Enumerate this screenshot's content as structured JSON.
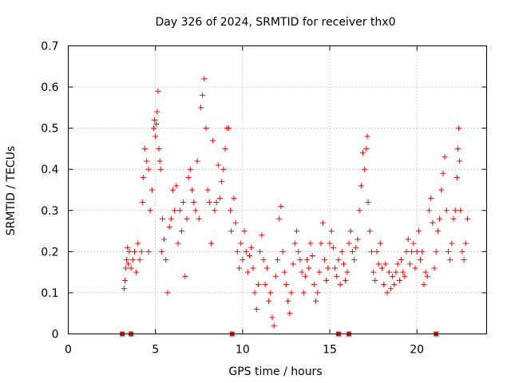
{
  "chart_data": {
    "type": "scatter",
    "title": "Day 326 of 2024, SRMTID for receiver thx0",
    "xlabel": "GPS time / hours",
    "ylabel": "SRMTID / TECUs",
    "xlim": [
      0,
      24
    ],
    "ylim": [
      0,
      0.7
    ],
    "xticks": [
      0,
      5,
      10,
      15,
      20
    ],
    "xtick_labels": [
      "0",
      "5",
      "10",
      "15",
      "20"
    ],
    "yticks": [
      0,
      0.1,
      0.2,
      0.3,
      0.4,
      0.5,
      0.6,
      0.7
    ],
    "ytick_labels": [
      "0",
      "0.1",
      "0.2",
      "0.3",
      "0.4",
      "0.5",
      "0.6",
      "0.7"
    ],
    "grid": true,
    "marker": "plus",
    "color": "#ff0000",
    "series": [
      {
        "name": "SRMTID",
        "points": [
          [
            3.2,
            0.11
          ],
          [
            3.25,
            0.13
          ],
          [
            3.3,
            0.16
          ],
          [
            3.35,
            0.18
          ],
          [
            3.4,
            0.21
          ],
          [
            3.45,
            0.17
          ],
          [
            3.5,
            0.2
          ],
          [
            3.6,
            0.16
          ],
          [
            3.7,
            0.18
          ],
          [
            3.8,
            0.2
          ],
          [
            3.9,
            0.15
          ],
          [
            4.0,
            0.22
          ],
          [
            4.1,
            0.18
          ],
          [
            4.2,
            0.2
          ],
          [
            4.25,
            0.32
          ],
          [
            4.3,
            0.38
          ],
          [
            4.4,
            0.45
          ],
          [
            4.5,
            0.42
          ],
          [
            4.6,
            0.4
          ],
          [
            4.6,
            0.2
          ],
          [
            4.7,
            0.3
          ],
          [
            4.8,
            0.35
          ],
          [
            4.9,
            0.5
          ],
          [
            4.95,
            0.52
          ],
          [
            5.0,
            0.48
          ],
          [
            5.05,
            0.51
          ],
          [
            5.1,
            0.54
          ],
          [
            5.15,
            0.59
          ],
          [
            5.2,
            0.45
          ],
          [
            5.25,
            0.42
          ],
          [
            5.3,
            0.4
          ],
          [
            5.35,
            0.2
          ],
          [
            5.4,
            0.28
          ],
          [
            5.5,
            0.23
          ],
          [
            5.6,
            0.18
          ],
          [
            5.7,
            0.1
          ],
          [
            5.8,
            0.26
          ],
          [
            5.9,
            0.28
          ],
          [
            6.0,
            0.35
          ],
          [
            6.1,
            0.3
          ],
          [
            6.2,
            0.36
          ],
          [
            6.3,
            0.22
          ],
          [
            6.4,
            0.3
          ],
          [
            6.5,
            0.25
          ],
          [
            6.6,
            0.32
          ],
          [
            6.7,
            0.14
          ],
          [
            6.8,
            0.28
          ],
          [
            6.9,
            0.38
          ],
          [
            7.0,
            0.4
          ],
          [
            7.1,
            0.35
          ],
          [
            7.2,
            0.32
          ],
          [
            7.3,
            0.3
          ],
          [
            7.4,
            0.42
          ],
          [
            7.5,
            0.28
          ],
          [
            7.6,
            0.55
          ],
          [
            7.7,
            0.58
          ],
          [
            7.8,
            0.62
          ],
          [
            7.9,
            0.5
          ],
          [
            8.0,
            0.35
          ],
          [
            8.1,
            0.32
          ],
          [
            8.2,
            0.22
          ],
          [
            8.3,
            0.47
          ],
          [
            8.4,
            0.3
          ],
          [
            8.5,
            0.32
          ],
          [
            8.6,
            0.41
          ],
          [
            8.7,
            0.33
          ],
          [
            8.8,
            0.37
          ],
          [
            8.9,
            0.4
          ],
          [
            9.0,
            0.45
          ],
          [
            9.1,
            0.5
          ],
          [
            9.2,
            0.5
          ],
          [
            9.3,
            0.3
          ],
          [
            9.35,
            0.25
          ],
          [
            9.5,
            0.33
          ],
          [
            9.6,
            0.27
          ],
          [
            9.7,
            0.2
          ],
          [
            9.8,
            0.16
          ],
          [
            9.9,
            0.22
          ],
          [
            10.0,
            0.18
          ],
          [
            10.1,
            0.25
          ],
          [
            10.2,
            0.2
          ],
          [
            10.3,
            0.15
          ],
          [
            10.4,
            0.19
          ],
          [
            10.5,
            0.21
          ],
          [
            10.6,
            0.16
          ],
          [
            10.7,
            0.1
          ],
          [
            10.8,
            0.06
          ],
          [
            10.9,
            0.12
          ],
          [
            11.0,
            0.2
          ],
          [
            11.1,
            0.24
          ],
          [
            11.2,
            0.18
          ],
          [
            11.3,
            0.12
          ],
          [
            11.4,
            0.16
          ],
          [
            11.5,
            0.08
          ],
          [
            11.6,
            0.1
          ],
          [
            11.7,
            0.04
          ],
          [
            11.8,
            0.02
          ],
          [
            11.9,
            0.14
          ],
          [
            12.0,
            0.18
          ],
          [
            12.1,
            0.28
          ],
          [
            12.2,
            0.31
          ],
          [
            12.3,
            0.2
          ],
          [
            12.4,
            0.15
          ],
          [
            12.5,
            0.12
          ],
          [
            12.6,
            0.08
          ],
          [
            12.7,
            0.05
          ],
          [
            12.8,
            0.1
          ],
          [
            12.9,
            0.17
          ],
          [
            13.0,
            0.22
          ],
          [
            13.1,
            0.25
          ],
          [
            13.2,
            0.2
          ],
          [
            13.3,
            0.18
          ],
          [
            13.4,
            0.15
          ],
          [
            13.5,
            0.1
          ],
          [
            13.6,
            0.14
          ],
          [
            13.7,
            0.18
          ],
          [
            13.8,
            0.16
          ],
          [
            13.9,
            0.22
          ],
          [
            14.0,
            0.19
          ],
          [
            14.1,
            0.12
          ],
          [
            14.2,
            0.08
          ],
          [
            14.3,
            0.1
          ],
          [
            14.4,
            0.15
          ],
          [
            14.5,
            0.22
          ],
          [
            14.6,
            0.27
          ],
          [
            14.7,
            0.18
          ],
          [
            14.8,
            0.13
          ],
          [
            14.9,
            0.16
          ],
          [
            15.0,
            0.22
          ],
          [
            15.1,
            0.25
          ],
          [
            15.2,
            0.21
          ],
          [
            15.3,
            0.16
          ],
          [
            15.4,
            0.14
          ],
          [
            15.5,
            0.18
          ],
          [
            15.6,
            0.12
          ],
          [
            15.7,
            0.2
          ],
          [
            15.8,
            0.17
          ],
          [
            15.9,
            0.13
          ],
          [
            16.0,
            0.15
          ],
          [
            16.1,
            0.22
          ],
          [
            16.2,
            0.25
          ],
          [
            16.3,
            0.2
          ],
          [
            16.4,
            0.18
          ],
          [
            16.5,
            0.21
          ],
          [
            16.6,
            0.23
          ],
          [
            16.7,
            0.3
          ],
          [
            16.8,
            0.36
          ],
          [
            16.9,
            0.44
          ],
          [
            17.0,
            0.4
          ],
          [
            17.1,
            0.45
          ],
          [
            17.15,
            0.48
          ],
          [
            17.2,
            0.32
          ],
          [
            17.3,
            0.25
          ],
          [
            17.4,
            0.2
          ],
          [
            17.5,
            0.15
          ],
          [
            17.6,
            0.13
          ],
          [
            17.7,
            0.2
          ],
          [
            17.8,
            0.17
          ],
          [
            17.9,
            0.22
          ],
          [
            18.0,
            0.16
          ],
          [
            18.1,
            0.12
          ],
          [
            18.2,
            0.17
          ],
          [
            18.3,
            0.1
          ],
          [
            18.4,
            0.15
          ],
          [
            18.5,
            0.11
          ],
          [
            18.6,
            0.14
          ],
          [
            18.7,
            0.12
          ],
          [
            18.8,
            0.15
          ],
          [
            18.9,
            0.17
          ],
          [
            19.0,
            0.13
          ],
          [
            19.1,
            0.18
          ],
          [
            19.2,
            0.15
          ],
          [
            19.3,
            0.14
          ],
          [
            19.4,
            0.2
          ],
          [
            19.5,
            0.23
          ],
          [
            19.6,
            0.17
          ],
          [
            19.7,
            0.2
          ],
          [
            19.8,
            0.22
          ],
          [
            19.9,
            0.16
          ],
          [
            20.0,
            0.2
          ],
          [
            20.1,
            0.25
          ],
          [
            20.2,
            0.18
          ],
          [
            20.3,
            0.2
          ],
          [
            20.4,
            0.12
          ],
          [
            20.5,
            0.15
          ],
          [
            20.6,
            0.14
          ],
          [
            20.7,
            0.3
          ],
          [
            20.8,
            0.33
          ],
          [
            20.9,
            0.27
          ],
          [
            21.0,
            0.16
          ],
          [
            21.1,
            0.2
          ],
          [
            21.2,
            0.25
          ],
          [
            21.3,
            0.28
          ],
          [
            21.4,
            0.35
          ],
          [
            21.5,
            0.39
          ],
          [
            21.6,
            0.43
          ],
          [
            21.7,
            0.3
          ],
          [
            21.8,
            0.2
          ],
          [
            21.9,
            0.18
          ],
          [
            22.0,
            0.22
          ],
          [
            22.1,
            0.28
          ],
          [
            22.2,
            0.3
          ],
          [
            22.3,
            0.38
          ],
          [
            22.35,
            0.45
          ],
          [
            22.4,
            0.5
          ],
          [
            22.45,
            0.42
          ],
          [
            22.5,
            0.3
          ],
          [
            22.6,
            0.2
          ],
          [
            22.7,
            0.18
          ],
          [
            22.8,
            0.22
          ],
          [
            22.9,
            0.28
          ]
        ]
      },
      {
        "name": "gap markers",
        "points": [
          [
            3.1,
            0
          ],
          [
            3.6,
            0
          ],
          [
            9.4,
            0
          ],
          [
            15.5,
            0
          ],
          [
            16.1,
            0
          ],
          [
            21.1,
            0
          ]
        ]
      }
    ]
  }
}
